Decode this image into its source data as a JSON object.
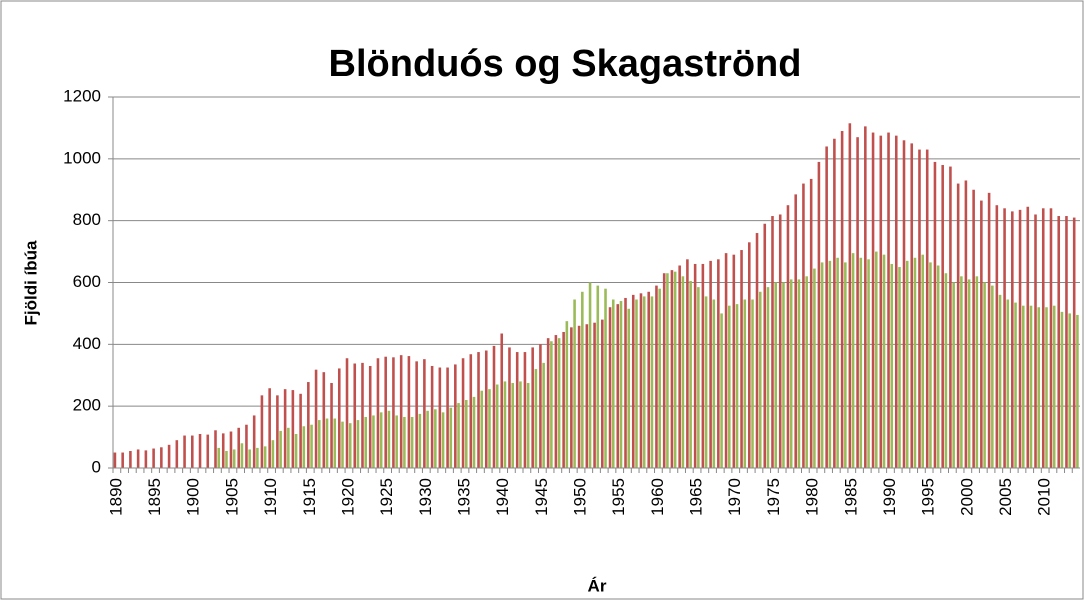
{
  "chart_data": {
    "type": "bar",
    "title": "Blönduós og Skagaströnd",
    "xlabel": "Ár",
    "ylabel": "Fjöldi íbúa",
    "categories": [
      "1890",
      null,
      null,
      null,
      null,
      "1895",
      null,
      null,
      null,
      null,
      "1900",
      null,
      null,
      null,
      null,
      "1905",
      null,
      null,
      null,
      null,
      "1910",
      null,
      null,
      null,
      null,
      "1915",
      null,
      null,
      null,
      null,
      "1920",
      null,
      null,
      null,
      null,
      "1925",
      null,
      null,
      null,
      null,
      "1930",
      null,
      null,
      null,
      null,
      "1935",
      null,
      null,
      null,
      null,
      "1940",
      null,
      null,
      null,
      null,
      "1945",
      null,
      null,
      null,
      null,
      "1950",
      null,
      null,
      null,
      null,
      "1955",
      null,
      null,
      null,
      null,
      "1960",
      null,
      null,
      null,
      null,
      "1965",
      null,
      null,
      null,
      null,
      "1970",
      null,
      null,
      null,
      null,
      "1975",
      null,
      null,
      null,
      null,
      "1980",
      null,
      null,
      null,
      null,
      "1985",
      null,
      null,
      null,
      null,
      "1990",
      null,
      null,
      null,
      null,
      "1995",
      null,
      null,
      null,
      null,
      "2000",
      null,
      null,
      null,
      null,
      "2005",
      null,
      null,
      null,
      null,
      "2010",
      null,
      null,
      null,
      null
    ],
    "series": [
      {
        "color": "#c0504d",
        "values": [
          50,
          50,
          55,
          60,
          57,
          63,
          67,
          75,
          90,
          105,
          105,
          110,
          108,
          122,
          112,
          118,
          130,
          140,
          170,
          235,
          258,
          235,
          255,
          252,
          240,
          278,
          318,
          310,
          275,
          322,
          355,
          338,
          340,
          330,
          355,
          360,
          358,
          365,
          362,
          345,
          352,
          330,
          325,
          325,
          335,
          355,
          368,
          375,
          380,
          395,
          435,
          390,
          375,
          375,
          390,
          400,
          420,
          430,
          440,
          455,
          460,
          465,
          470,
          480,
          520,
          530,
          550,
          560,
          565,
          570,
          590,
          630,
          640,
          655,
          675,
          660,
          660,
          670,
          675,
          695,
          690,
          705,
          730,
          760,
          790,
          815,
          820,
          850,
          885,
          920,
          935,
          990,
          1040,
          1065,
          1090,
          1115,
          1070,
          1105,
          1085,
          1075,
          1085,
          1075,
          1060,
          1050,
          1030,
          1030,
          990,
          980,
          975,
          920,
          930,
          900,
          865,
          890,
          850,
          840,
          830,
          835,
          845,
          820,
          840,
          840,
          815,
          815,
          810
        ]
      },
      {
        "color": "#9bbb59",
        "values": [
          null,
          null,
          null,
          null,
          null,
          null,
          null,
          null,
          null,
          null,
          null,
          null,
          null,
          65,
          55,
          60,
          80,
          60,
          65,
          70,
          90,
          120,
          130,
          110,
          135,
          140,
          155,
          160,
          160,
          150,
          145,
          155,
          165,
          170,
          180,
          185,
          170,
          165,
          165,
          175,
          185,
          190,
          180,
          195,
          210,
          220,
          230,
          250,
          255,
          270,
          280,
          275,
          280,
          275,
          320,
          340,
          410,
          420,
          475,
          545,
          570,
          600,
          590,
          580,
          545,
          540,
          515,
          545,
          555,
          555,
          580,
          630,
          635,
          620,
          605,
          585,
          555,
          545,
          500,
          525,
          530,
          545,
          545,
          570,
          585,
          600,
          600,
          610,
          610,
          620,
          645,
          665,
          670,
          680,
          665,
          695,
          680,
          675,
          700,
          690,
          660,
          650,
          670,
          680,
          690,
          665,
          655,
          630,
          600,
          620,
          610,
          620,
          600,
          590,
          560,
          545,
          535,
          525,
          525,
          520,
          520,
          525,
          505,
          500,
          495
        ]
      }
    ],
    "ylim": [
      0,
      1200
    ],
    "yticks": [
      0,
      200,
      400,
      600,
      800,
      1000,
      1200
    ],
    "grid": true
  }
}
